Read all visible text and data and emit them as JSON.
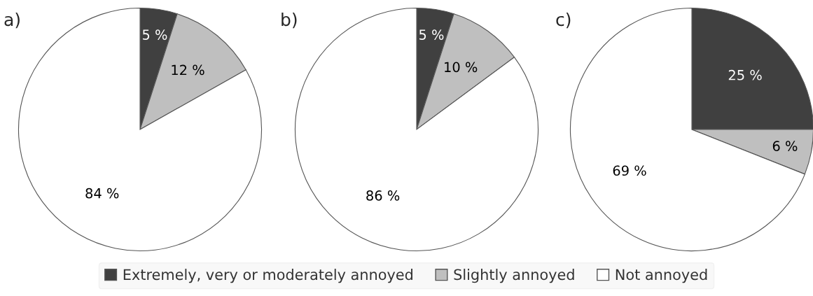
{
  "chart_data": [
    {
      "type": "pie",
      "title": "a)",
      "categories": [
        "Extremely, very or moderately annoyed",
        "Slightly annoyed",
        "Not annoyed"
      ],
      "values": [
        5,
        12,
        84
      ],
      "colors": [
        "#404040",
        "#bfbfbf",
        "#ffffff"
      ],
      "value_labels": [
        "5 %",
        "12 %",
        "84 %"
      ],
      "legend": "bottom"
    },
    {
      "type": "pie",
      "title": "b)",
      "values": [
        5,
        10,
        86
      ],
      "colors": [
        "#404040",
        "#bfbfbf",
        "#ffffff"
      ],
      "value_labels": [
        "5 %",
        "10 %",
        "86 %"
      ]
    },
    {
      "type": "pie",
      "title": "c)",
      "values": [
        25,
        6,
        69
      ],
      "colors": [
        "#404040",
        "#bfbfbf",
        "#ffffff"
      ],
      "value_labels": [
        "25 %",
        "6 %",
        "69 %"
      ]
    }
  ]
}
